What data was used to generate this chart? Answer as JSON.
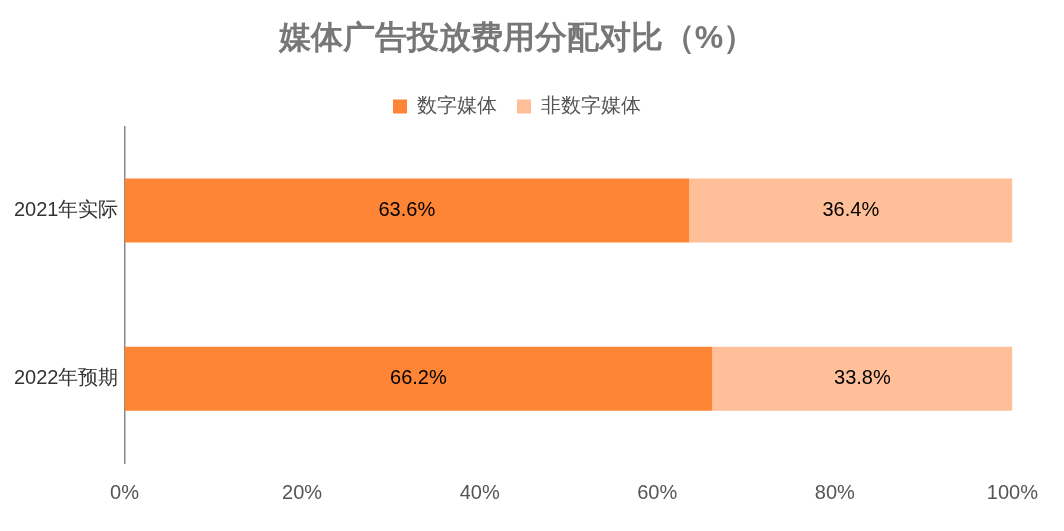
{
  "chart_data": {
    "type": "bar",
    "orientation": "horizontal",
    "stacked": true,
    "title": "媒体广告投放费用分配对比（%）",
    "categories": [
      "2021年实际",
      "2022年预期"
    ],
    "series": [
      {
        "name": "数字媒体",
        "color": "#fe8536",
        "values": [
          63.6,
          66.2
        ]
      },
      {
        "name": "非数字媒体",
        "color": "#ffc099",
        "values": [
          36.4,
          33.8
        ]
      }
    ],
    "value_labels": [
      [
        "63.6%",
        "66.2%"
      ],
      [
        "36.4%",
        "33.8%"
      ]
    ],
    "xlim": [
      0,
      100
    ],
    "xticks": [
      {
        "value": 0,
        "label": "0%"
      },
      {
        "value": 20,
        "label": "20%"
      },
      {
        "value": 40,
        "label": "40%"
      },
      {
        "value": 60,
        "label": "60%"
      },
      {
        "value": 80,
        "label": "80%"
      },
      {
        "value": 100,
        "label": "100%"
      }
    ],
    "grid": false,
    "legend": "top"
  }
}
